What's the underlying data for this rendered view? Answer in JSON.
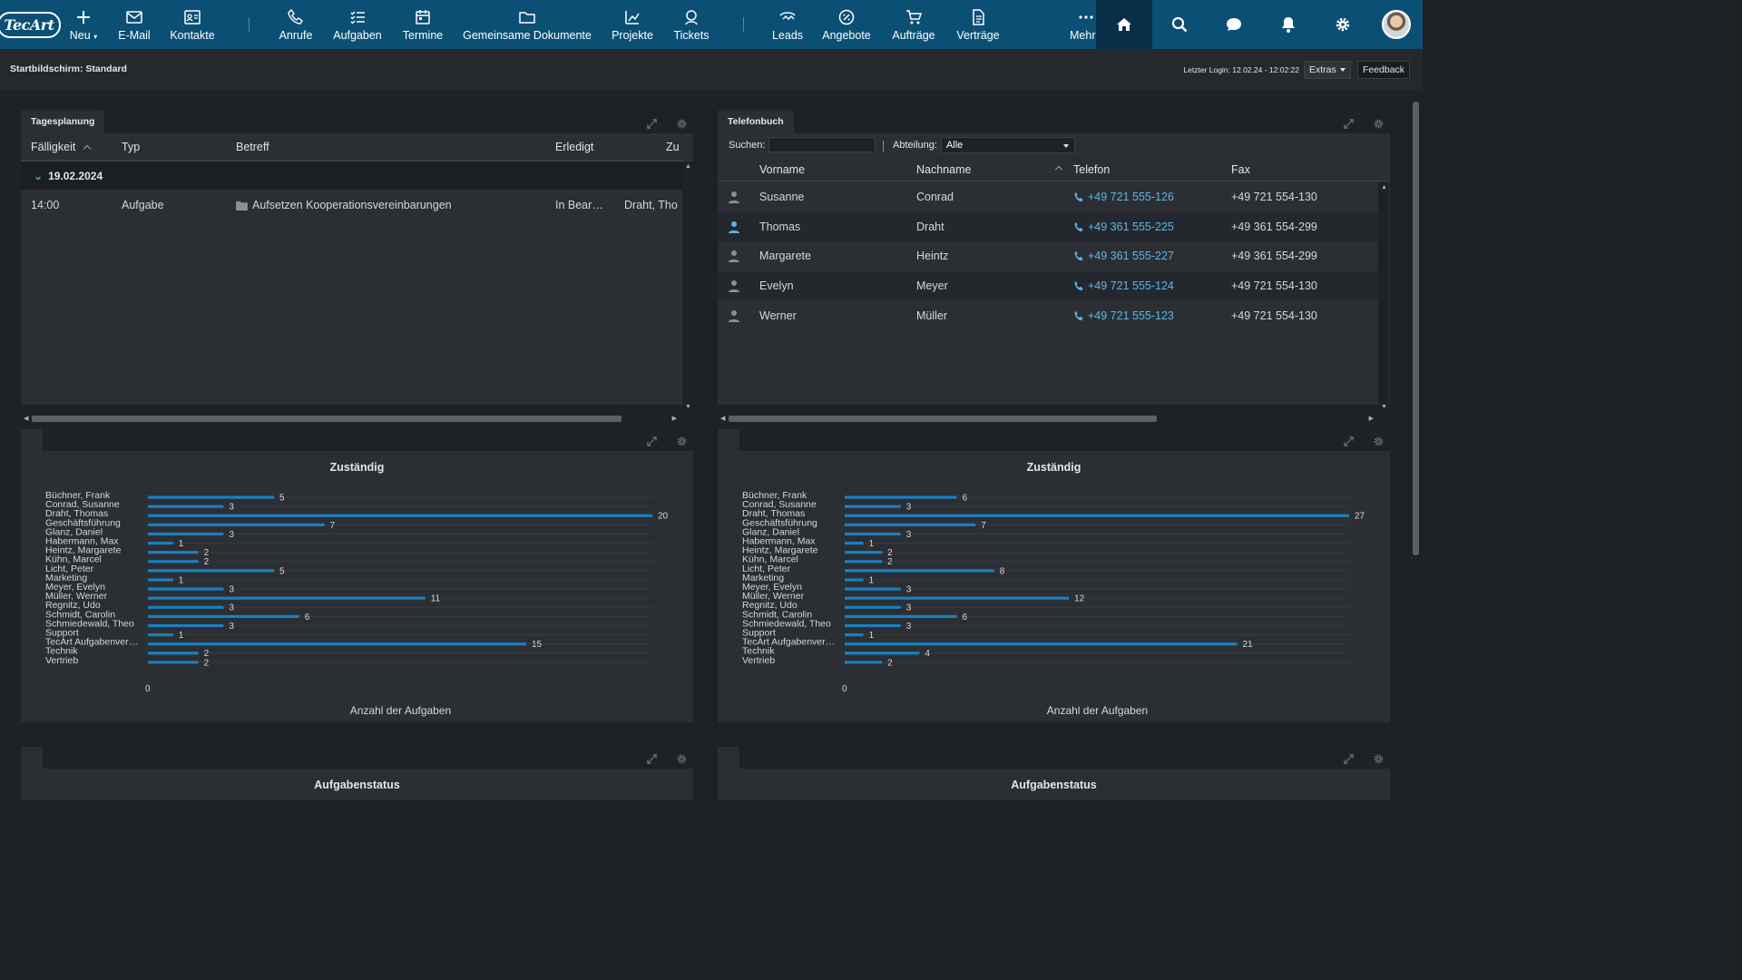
{
  "app": {
    "logo_text": "TecArt"
  },
  "nav": {
    "items": [
      {
        "label": "Neu",
        "icon": "plus-icon",
        "dropdown": true
      },
      {
        "label": "E-Mail",
        "icon": "mail-icon"
      },
      {
        "label": "Kontakte",
        "icon": "contacts-icon"
      },
      {
        "label": "Anrufe",
        "icon": "phone-icon"
      },
      {
        "label": "Aufgaben",
        "icon": "tasks-icon"
      },
      {
        "label": "Termine",
        "icon": "calendar-icon"
      },
      {
        "label": "Gemeinsame Dokumente",
        "icon": "folder-icon"
      },
      {
        "label": "Projekte",
        "icon": "projects-icon"
      },
      {
        "label": "Tickets",
        "icon": "ticket-icon"
      },
      {
        "label": "Leads",
        "icon": "leads-icon"
      },
      {
        "label": "Angebote",
        "icon": "offers-icon"
      },
      {
        "label": "Aufträge",
        "icon": "cart-icon"
      },
      {
        "label": "Verträge",
        "icon": "contract-icon"
      },
      {
        "label": "Mehr",
        "icon": "more-icon",
        "dropdown": true
      }
    ],
    "right_icons": [
      "home-icon",
      "search-icon",
      "chat-icon",
      "bell-icon",
      "gear-icon"
    ]
  },
  "subheader": {
    "title": "Startbildschirm: Standard",
    "last_login": "Letzter Login: 12.02.24 - 12:02:22",
    "extras": "Extras",
    "feedback": "Feedback"
  },
  "tagesplanung": {
    "title": "Tagesplanung",
    "columns": [
      "Fälligkeit",
      "Typ",
      "Betreff",
      "Erledigt",
      "Zu"
    ],
    "group": "19.02.2024",
    "rows": [
      {
        "time": "14:00",
        "type": "Aufgabe",
        "subject": "Aufsetzen Kooperationsvereinbarungen",
        "done": "In Bear…",
        "assigned": "Draht, Tho"
      }
    ]
  },
  "telefonbuch": {
    "title": "Telefonbuch",
    "search_label": "Suchen:",
    "search_value": "",
    "dept_label": "Abteilung:",
    "dept_value": "Alle",
    "columns": [
      "Vorname",
      "Nachname",
      "Telefon",
      "Fax"
    ],
    "rows": [
      {
        "first": "Susanne",
        "last": "Conrad",
        "phone": "+49 721 555-126",
        "fax": "+49 721 554-130",
        "highlight": false
      },
      {
        "first": "Thomas",
        "last": "Draht",
        "phone": "+49 361 555-225",
        "fax": "+49 361 554-299",
        "highlight": true
      },
      {
        "first": "Margarete",
        "last": "Heintz",
        "phone": "+49 361 555-227",
        "fax": "+49 361 554-299",
        "highlight": false
      },
      {
        "first": "Evelyn",
        "last": "Meyer",
        "phone": "+49 721 555-124",
        "fax": "+49 721 554-130",
        "highlight": false
      },
      {
        "first": "Werner",
        "last": "Müller",
        "phone": "+49 721 555-123",
        "fax": "+49 721 554-130",
        "highlight": false
      }
    ]
  },
  "status_widgets": {
    "left_title": "Aufgabenstatus",
    "right_title": "Aufgabenstatus"
  },
  "chart_data": [
    {
      "type": "bar",
      "orientation": "horizontal",
      "title": "Zuständig",
      "xlabel": "Anzahl der Aufgaben",
      "ylabel": "",
      "xlim": [
        0,
        20
      ],
      "x_ticks": [
        "0"
      ],
      "bar_color": "#1a7fc1",
      "categories": [
        "Büchner, Frank",
        "Conrad, Susanne",
        "Draht, Thomas",
        "Geschäftsführung",
        "Glanz, Daniel",
        "Habermann, Max",
        "Heintz, Margarete",
        "Kühn, Marcel",
        "Licht, Peter",
        "Marketing",
        "Meyer, Evelyn",
        "Müller, Werner",
        "Regnitz, Udo",
        "Schmidt, Carolin",
        "Schmiedewald, Theo",
        "Support",
        "TecArt Aufgabenver…",
        "Technik",
        "Vertrieb"
      ],
      "values": [
        5,
        3,
        20,
        7,
        3,
        1,
        2,
        2,
        5,
        1,
        3,
        11,
        3,
        6,
        3,
        1,
        15,
        2,
        2
      ]
    },
    {
      "type": "bar",
      "orientation": "horizontal",
      "title": "Zuständig",
      "xlabel": "Anzahl der Aufgaben",
      "ylabel": "",
      "xlim": [
        0,
        27
      ],
      "x_ticks": [
        "0"
      ],
      "bar_color": "#1a7fc1",
      "categories": [
        "Büchner, Frank",
        "Conrad, Susanne",
        "Draht, Thomas",
        "Geschäftsführung",
        "Glanz, Daniel",
        "Habermann, Max",
        "Heintz, Margarete",
        "Kühn, Marcel",
        "Licht, Peter",
        "Marketing",
        "Meyer, Evelyn",
        "Müller, Werner",
        "Regnitz, Udo",
        "Schmidt, Carolin",
        "Schmiedewald, Theo",
        "Support",
        "TecArt Aufgabenver…",
        "Technik",
        "Vertrieb"
      ],
      "values": [
        6,
        3,
        27,
        7,
        3,
        1,
        2,
        2,
        8,
        1,
        3,
        12,
        3,
        6,
        3,
        1,
        21,
        4,
        2
      ]
    }
  ]
}
